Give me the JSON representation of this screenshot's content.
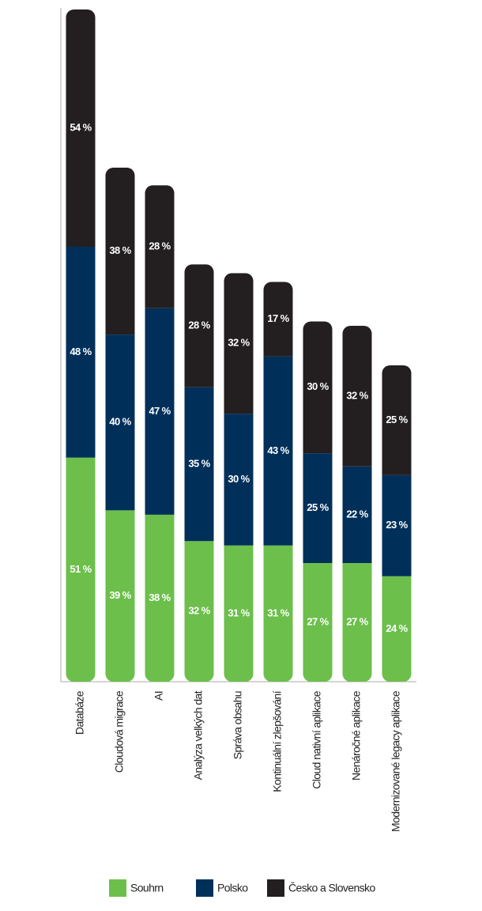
{
  "chart_data": {
    "type": "stacked-bar",
    "categories": [
      "Databáze",
      "Cloudová migrace",
      "AI",
      "Analýza velkých dat",
      "Správa obsahu",
      "Kontinuální zlepšování",
      "Cloud nativní aplikace",
      "Nenáročné aplikace",
      "Modernizované legacy aplikace"
    ],
    "series": [
      {
        "name": "Souhrn",
        "color": "#6cbf4b",
        "values": [
          51,
          39,
          38,
          32,
          31,
          31,
          27,
          27,
          24
        ],
        "value_labels": [
          "51 %",
          "39 %",
          "38 %",
          "32 %",
          "31 %",
          "31 %",
          "27 %",
          "27 %",
          "24 %"
        ]
      },
      {
        "name": "Polsko",
        "color": "#00305a",
        "values": [
          48,
          40,
          47,
          35,
          30,
          43,
          25,
          22,
          23
        ],
        "value_labels": [
          "48 %",
          "40 %",
          "47 %",
          "35 %",
          "30 %",
          "43 %",
          "25 %",
          "22 %",
          "23 %"
        ]
      },
      {
        "name": "Česko a Slovensko",
        "color": "#231f20",
        "values": [
          54,
          38,
          28,
          28,
          32,
          17,
          30,
          32,
          25
        ],
        "value_labels": [
          "54 %",
          "38 %",
          "28 %",
          "28 %",
          "32 %",
          "17 %",
          "30 %",
          "32 %",
          "25 %"
        ]
      }
    ],
    "ylim": [
      0,
      153
    ]
  }
}
